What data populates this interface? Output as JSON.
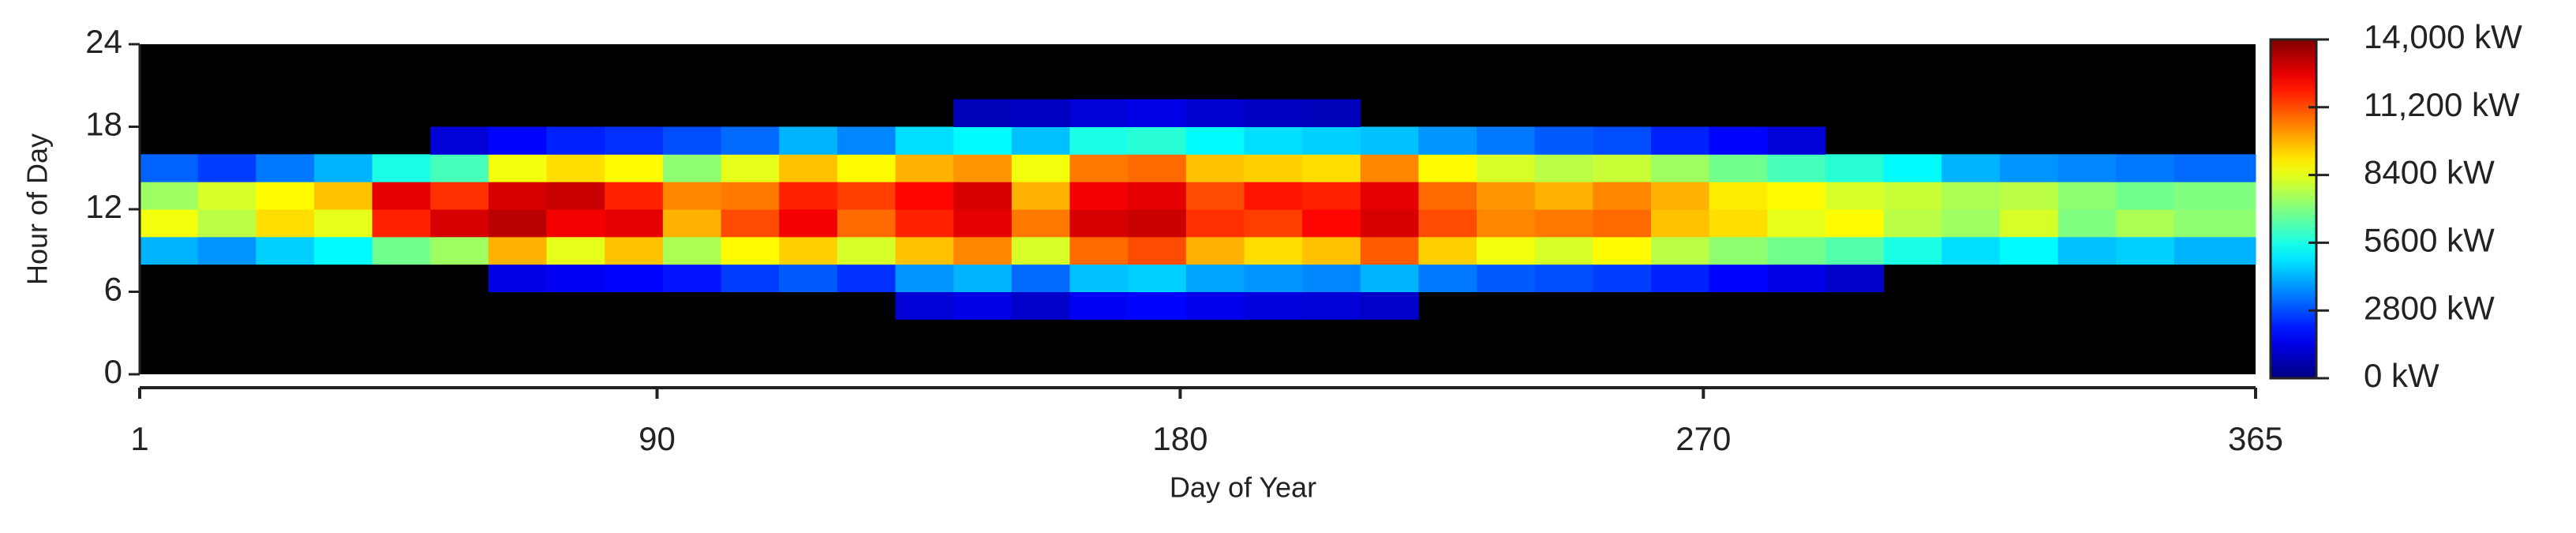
{
  "chart_data": {
    "type": "heatmap",
    "colormap": "jet",
    "x_label": "Day of Year",
    "y_label": "Hour of Day",
    "xlim": [
      1,
      365
    ],
    "xticks": [
      1,
      90,
      180,
      270,
      365
    ],
    "ylim": [
      0,
      24
    ],
    "yticks": [
      0,
      6,
      12,
      18,
      24
    ],
    "zlim": [
      0,
      14000
    ],
    "zticks": [
      {
        "value": 0,
        "label": "0 kW"
      },
      {
        "value": 2800,
        "label": "2800 kW"
      },
      {
        "value": 5600,
        "label": "5600 kW"
      },
      {
        "value": 8400,
        "label": "8400 kW"
      },
      {
        "value": 11200,
        "label": "11,200 kW"
      },
      {
        "value": 14000,
        "label": "14,000 kW"
      }
    ],
    "x_bins": [
      1,
      11,
      21,
      31,
      41,
      51,
      61,
      71,
      81,
      91,
      101,
      111,
      121,
      131,
      141,
      151,
      161,
      171,
      181,
      191,
      201,
      211,
      221,
      231,
      241,
      251,
      261,
      271,
      281,
      291,
      301,
      311,
      321,
      331,
      341,
      351,
      365
    ],
    "y_bins": [
      0,
      2,
      4,
      6,
      8,
      10,
      12,
      14,
      16,
      18,
      20,
      22,
      24
    ],
    "values": [
      [
        null,
        null,
        null,
        null,
        4200,
        8600,
        7400,
        3100,
        null,
        null,
        null,
        null
      ],
      [
        null,
        null,
        null,
        null,
        3800,
        7800,
        8200,
        2600,
        null,
        null,
        null,
        null
      ],
      [
        null,
        null,
        null,
        null,
        4600,
        9200,
        8800,
        3400,
        null,
        null,
        null,
        null
      ],
      [
        null,
        null,
        null,
        null,
        5200,
        8400,
        9600,
        4200,
        null,
        null,
        null,
        null
      ],
      [
        null,
        null,
        null,
        null,
        6800,
        11800,
        12600,
        5600,
        null,
        null,
        null,
        null
      ],
      [
        null,
        null,
        null,
        null,
        7400,
        12800,
        11600,
        6200,
        1200,
        null,
        null,
        null
      ],
      [
        null,
        null,
        null,
        1400,
        9800,
        13200,
        12800,
        8600,
        1800,
        null,
        null,
        null
      ],
      [
        null,
        null,
        null,
        1600,
        8400,
        12400,
        13000,
        9200,
        2200,
        null,
        null,
        null
      ],
      [
        null,
        null,
        null,
        1800,
        9600,
        12600,
        11800,
        8800,
        2400,
        null,
        null,
        null
      ],
      [
        null,
        null,
        null,
        2000,
        7600,
        9800,
        10400,
        7200,
        2800,
        null,
        null,
        null
      ],
      [
        null,
        null,
        null,
        2600,
        8800,
        11200,
        10600,
        8400,
        3200,
        null,
        null,
        null
      ],
      [
        null,
        null,
        null,
        3000,
        9400,
        12400,
        11800,
        9600,
        4200,
        null,
        null,
        null
      ],
      [
        null,
        null,
        null,
        2400,
        8200,
        10800,
        11400,
        8800,
        3600,
        null,
        null,
        null
      ],
      [
        null,
        null,
        1200,
        3800,
        9600,
        11800,
        12200,
        9800,
        4800,
        null,
        null,
        null
      ],
      [
        null,
        null,
        1400,
        4200,
        10400,
        12600,
        12800,
        10200,
        5200,
        800,
        null,
        null
      ],
      [
        null,
        null,
        1000,
        3200,
        8200,
        10600,
        9800,
        8600,
        4400,
        900,
        null,
        null
      ],
      [
        null,
        null,
        1600,
        4400,
        10800,
        12800,
        12400,
        10600,
        5600,
        1200,
        null,
        null
      ],
      [
        null,
        null,
        1800,
        4600,
        11200,
        13000,
        12600,
        10800,
        5800,
        1400,
        null,
        null
      ],
      [
        null,
        null,
        1500,
        4000,
        9800,
        11600,
        11200,
        9600,
        5200,
        1100,
        null,
        null
      ],
      [
        null,
        null,
        1300,
        3800,
        9200,
        11400,
        12000,
        9400,
        4800,
        900,
        null,
        null
      ],
      [
        null,
        null,
        1200,
        3600,
        9600,
        12200,
        11800,
        9200,
        4600,
        800,
        null,
        null
      ],
      [
        null,
        null,
        1000,
        4200,
        11000,
        12800,
        12600,
        10400,
        4400,
        null,
        null,
        null
      ],
      [
        null,
        null,
        null,
        3400,
        9400,
        11200,
        10800,
        8800,
        3800,
        null,
        null,
        null
      ],
      [
        null,
        null,
        null,
        3000,
        8600,
        10400,
        10200,
        8200,
        3400,
        null,
        null,
        null
      ],
      [
        null,
        null,
        null,
        2800,
        8200,
        10600,
        9800,
        7800,
        3000,
        null,
        null,
        null
      ],
      [
        null,
        null,
        null,
        2600,
        8800,
        10800,
        10400,
        8000,
        2800,
        null,
        null,
        null
      ],
      [
        null,
        null,
        null,
        2200,
        7800,
        9600,
        9800,
        7400,
        2200,
        null,
        null,
        null
      ],
      [
        null,
        null,
        null,
        1800,
        7200,
        9200,
        9000,
        6800,
        1800,
        null,
        null,
        null
      ],
      [
        null,
        null,
        null,
        1400,
        6800,
        8400,
        8800,
        6200,
        1200,
        null,
        null,
        null
      ],
      [
        null,
        null,
        null,
        1000,
        6400,
        8800,
        8200,
        5800,
        null,
        null,
        null,
        null
      ],
      [
        null,
        null,
        null,
        null,
        5600,
        7800,
        8000,
        5200,
        null,
        null,
        null,
        null
      ],
      [
        null,
        null,
        null,
        null,
        4800,
        7400,
        7600,
        4200,
        null,
        null,
        null,
        null
      ],
      [
        null,
        null,
        null,
        null,
        5200,
        8200,
        7800,
        3800,
        null,
        null,
        null,
        null
      ],
      [
        null,
        null,
        null,
        null,
        4400,
        7000,
        7200,
        3600,
        null,
        null,
        null,
        null
      ],
      [
        null,
        null,
        null,
        null,
        4600,
        7600,
        6800,
        3400,
        null,
        null,
        null,
        null
      ],
      [
        null,
        null,
        null,
        null,
        4200,
        7200,
        7000,
        3200,
        null,
        null,
        null,
        null
      ]
    ]
  }
}
